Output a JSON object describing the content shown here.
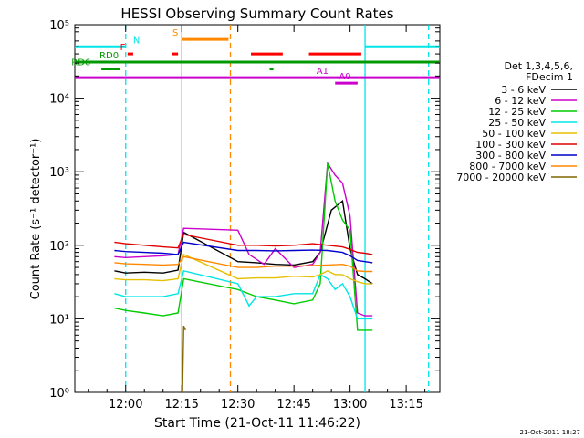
{
  "chart_data": {
    "type": "line",
    "title": "HESSI Observing Summary Count Rates",
    "xlabel": "Start Time (21-Oct-11 11:46:22)",
    "ylabel": "Count Rate (s⁻¹ detector⁻¹)",
    "x_unit": "minutes after 12:00 UT",
    "xlim": [
      -13.6,
      84
    ],
    "ylog": true,
    "ylim": [
      1,
      100000
    ],
    "x_ticks": [
      {
        "x": 0,
        "label": "12:00"
      },
      {
        "x": 15,
        "label": "12:15"
      },
      {
        "x": 30,
        "label": "12:30"
      },
      {
        "x": 45,
        "label": "12:45"
      },
      {
        "x": 60,
        "label": "13:00"
      },
      {
        "x": 75,
        "label": "13:15"
      }
    ],
    "y_ticks": [
      {
        "v": 1,
        "label": "10⁰"
      },
      {
        "v": 10,
        "label": "10¹"
      },
      {
        "v": 100,
        "label": "10²"
      },
      {
        "v": 1000,
        "label": "10³"
      },
      {
        "v": 10000,
        "label": "10⁴"
      },
      {
        "v": 100000,
        "label": "10⁵"
      }
    ],
    "legend_header": [
      "Det 1,3,4,5,6,",
      "FDecim 1"
    ],
    "legend_position": "right",
    "series": [
      {
        "name": "3 - 6 keV",
        "color": "#000000",
        "values": [
          [
            -3,
            45
          ],
          [
            0,
            42
          ],
          [
            5,
            43
          ],
          [
            10,
            42
          ],
          [
            14,
            46
          ],
          [
            15.5,
            150
          ],
          [
            30,
            60
          ],
          [
            35,
            58
          ],
          [
            40,
            55
          ],
          [
            45,
            54
          ],
          [
            50,
            60
          ],
          [
            52,
            80
          ],
          [
            55,
            300
          ],
          [
            58,
            400
          ],
          [
            60,
            90
          ],
          [
            62,
            40
          ],
          [
            64,
            35
          ],
          [
            66,
            30
          ]
        ]
      },
      {
        "name": "6 - 12 keV",
        "color": "#cc00cc",
        "values": [
          [
            -3,
            70
          ],
          [
            0,
            68
          ],
          [
            5,
            70
          ],
          [
            10,
            72
          ],
          [
            14,
            75
          ],
          [
            15.5,
            170
          ],
          [
            30,
            160
          ],
          [
            33,
            75
          ],
          [
            37,
            55
          ],
          [
            40,
            90
          ],
          [
            45,
            50
          ],
          [
            50,
            55
          ],
          [
            52,
            80
          ],
          [
            54,
            1300
          ],
          [
            56,
            900
          ],
          [
            58,
            700
          ],
          [
            60,
            250
          ],
          [
            62,
            12
          ],
          [
            64,
            11
          ],
          [
            66,
            11
          ]
        ]
      },
      {
        "name": "12 - 25 keV",
        "color": "#00cc00",
        "values": [
          [
            -3,
            14
          ],
          [
            0,
            13
          ],
          [
            5,
            12
          ],
          [
            10,
            11
          ],
          [
            14,
            12
          ],
          [
            15.5,
            35
          ],
          [
            30,
            25
          ],
          [
            35,
            20
          ],
          [
            40,
            18
          ],
          [
            45,
            16
          ],
          [
            50,
            18
          ],
          [
            52,
            30
          ],
          [
            54,
            1300
          ],
          [
            56,
            400
          ],
          [
            58,
            220
          ],
          [
            60,
            160
          ],
          [
            62,
            7
          ],
          [
            64,
            7
          ],
          [
            66,
            7
          ]
        ]
      },
      {
        "name": "25 - 50 keV",
        "color": "#00e5e5",
        "values": [
          [
            -3,
            22
          ],
          [
            0,
            20
          ],
          [
            5,
            20
          ],
          [
            10,
            20
          ],
          [
            14,
            22
          ],
          [
            15.5,
            45
          ],
          [
            30,
            30
          ],
          [
            33,
            15
          ],
          [
            35,
            20
          ],
          [
            40,
            20
          ],
          [
            45,
            22
          ],
          [
            50,
            22
          ],
          [
            52,
            40
          ],
          [
            54,
            35
          ],
          [
            56,
            25
          ],
          [
            58,
            30
          ],
          [
            60,
            20
          ],
          [
            62,
            10
          ],
          [
            64,
            10
          ],
          [
            66,
            10
          ]
        ]
      },
      {
        "name": "50 - 100 keV",
        "color": "#e5c000",
        "values": [
          [
            -3,
            35
          ],
          [
            0,
            34
          ],
          [
            5,
            34
          ],
          [
            10,
            33
          ],
          [
            14,
            35
          ],
          [
            15.5,
            75
          ],
          [
            30,
            35
          ],
          [
            35,
            36
          ],
          [
            40,
            36
          ],
          [
            45,
            38
          ],
          [
            50,
            37
          ],
          [
            52,
            40
          ],
          [
            54,
            45
          ],
          [
            56,
            40
          ],
          [
            58,
            40
          ],
          [
            60,
            35
          ],
          [
            62,
            32
          ],
          [
            64,
            30
          ],
          [
            66,
            30
          ]
        ]
      },
      {
        "name": "100 - 300 keV",
        "color": "#e00000",
        "values": [
          [
            -3,
            110
          ],
          [
            0,
            105
          ],
          [
            5,
            100
          ],
          [
            10,
            95
          ],
          [
            14,
            92
          ],
          [
            15.5,
            140
          ],
          [
            30,
            100
          ],
          [
            35,
            100
          ],
          [
            40,
            98
          ],
          [
            45,
            100
          ],
          [
            50,
            105
          ],
          [
            54,
            100
          ],
          [
            58,
            95
          ],
          [
            60,
            88
          ],
          [
            62,
            80
          ],
          [
            64,
            78
          ],
          [
            66,
            75
          ]
        ]
      },
      {
        "name": "300 - 800 keV",
        "color": "#0000cc",
        "values": [
          [
            -3,
            85
          ],
          [
            0,
            82
          ],
          [
            5,
            80
          ],
          [
            10,
            78
          ],
          [
            14,
            75
          ],
          [
            15.5,
            110
          ],
          [
            30,
            85
          ],
          [
            35,
            85
          ],
          [
            40,
            84
          ],
          [
            45,
            85
          ],
          [
            50,
            86
          ],
          [
            54,
            85
          ],
          [
            58,
            80
          ],
          [
            60,
            72
          ],
          [
            62,
            62
          ],
          [
            64,
            60
          ],
          [
            66,
            58
          ]
        ]
      },
      {
        "name": "800 - 7000 keV",
        "color": "#ff8800",
        "values": [
          [
            -3,
            58
          ],
          [
            0,
            56
          ],
          [
            5,
            55
          ],
          [
            10,
            54
          ],
          [
            14,
            55
          ],
          [
            15.5,
            70
          ],
          [
            30,
            50
          ],
          [
            35,
            50
          ],
          [
            40,
            52
          ],
          [
            45,
            52
          ],
          [
            50,
            53
          ],
          [
            54,
            54
          ],
          [
            58,
            55
          ],
          [
            60,
            52
          ],
          [
            62,
            45
          ],
          [
            64,
            44
          ],
          [
            66,
            44
          ]
        ]
      },
      {
        "name": "7000 - 20000 keV",
        "color": "#806600",
        "values": [
          [
            15.2,
            1
          ],
          [
            15.5,
            8
          ],
          [
            16,
            7
          ]
        ]
      }
    ],
    "legend": [
      "3 - 6 keV",
      "6 - 12 keV",
      "12 - 25 keV",
      "25 - 50 keV",
      "50 - 100 keV",
      "100 - 300 keV",
      "300 - 800 keV",
      "800 - 7000 keV",
      "7000 - 20000 keV"
    ],
    "status_bars": [
      {
        "label": "N",
        "color": "#00e5e5",
        "level": 50000,
        "segments": [
          [
            -13.6,
            0
          ],
          [
            64,
            84
          ]
        ],
        "label_x": 2
      },
      {
        "label": "S",
        "color": "#ff8800",
        "level": 63000,
        "segments": [
          [
            15,
            27.5
          ]
        ],
        "label_x": 12.5
      },
      {
        "label": "F",
        "color": "#ff0000",
        "level": 40000,
        "segments": [
          [
            0.5,
            2
          ],
          [
            12.5,
            14
          ],
          [
            33.5,
            42
          ],
          [
            49,
            63
          ]
        ],
        "label_x": -1.5
      },
      {
        "label": "RD0",
        "color": "#009900",
        "level": 31000,
        "segments": [
          [
            -13.6,
            84
          ]
        ],
        "label_x": -7
      },
      {
        "label": "RD6",
        "color": "#009900",
        "level": 25000,
        "segments": [
          [
            -6.5,
            -1.5
          ],
          [
            38.5,
            39.5
          ]
        ],
        "label_x": -14.5
      },
      {
        "label": "A1",
        "color": "#cc00cc",
        "level": 19000,
        "segments": [
          [
            -13.6,
            84
          ]
        ],
        "label_x": 51
      },
      {
        "label": "A0",
        "color": "#cc00cc",
        "level": 16000,
        "segments": [
          [
            56,
            62
          ]
        ],
        "label_x": 57
      }
    ],
    "vertical_markers": [
      {
        "x": 0,
        "color": "#00e5e5",
        "style": "dashed"
      },
      {
        "x": 64,
        "color": "#00e5e5",
        "style": "solid"
      },
      {
        "x": 81,
        "color": "#00e5e5",
        "style": "dashed"
      },
      {
        "x": 28,
        "color": "#ff8800",
        "style": "dashed"
      },
      {
        "x": 15,
        "color": "#ff8800",
        "style": "solid"
      }
    ],
    "grid": false
  },
  "footer_timestamp": "21-Oct-2011 18:27"
}
